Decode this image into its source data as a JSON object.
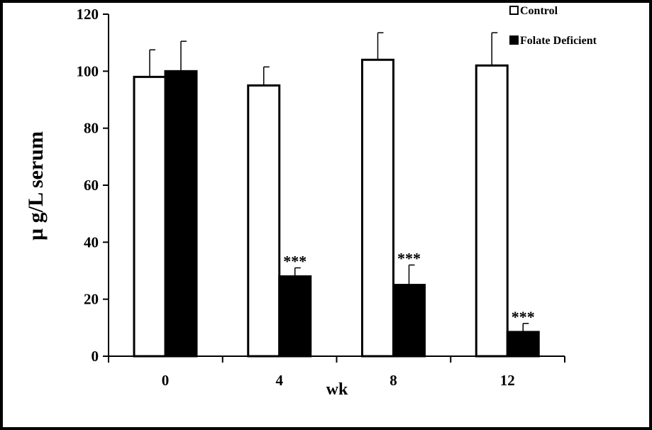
{
  "chart_data": {
    "type": "bar",
    "title": "",
    "xlabel": "wk",
    "ylabel": "µ g/L serum",
    "categories": [
      "0",
      "4",
      "8",
      "12"
    ],
    "ylim": [
      0,
      120
    ],
    "yticks": [
      "0",
      "20",
      "40",
      "60",
      "80",
      "100",
      "120"
    ],
    "grid": false,
    "legend_position": "top-right",
    "series": [
      {
        "name": "Control",
        "fill": "#ffffff",
        "stroke": "#000000",
        "values": [
          98,
          95,
          104,
          102
        ],
        "error": [
          9.5,
          6.5,
          9.5,
          11.5
        ]
      },
      {
        "name": "Folate Deficient",
        "fill": "#000000",
        "stroke": "#000000",
        "values": [
          100,
          28,
          25,
          8.5
        ],
        "error": [
          10.5,
          3,
          7,
          3
        ]
      }
    ],
    "annotations": [
      {
        "category": "4",
        "series": "Folate Deficient",
        "text": "***"
      },
      {
        "category": "8",
        "series": "Folate Deficient",
        "text": "***"
      },
      {
        "category": "12",
        "series": "Folate Deficient",
        "text": "***"
      }
    ]
  }
}
